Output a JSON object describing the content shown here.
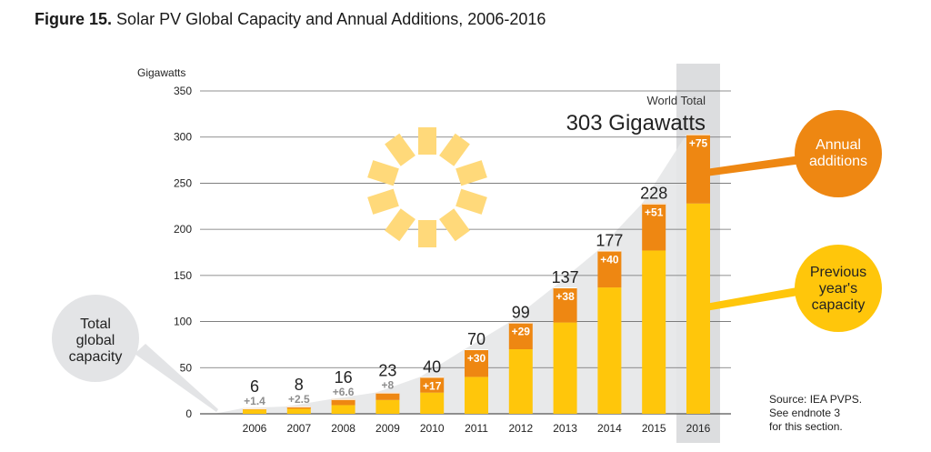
{
  "title": {
    "figure_label": "Figure 15.",
    "text": "Solar PV Global Capacity and Annual Additions, 2006-2016"
  },
  "colors": {
    "previous": "#FFC60B",
    "additions": "#EE8712",
    "area": "#E6E7E8",
    "highlight": "#DCDDDF",
    "sun": "#FFD97A",
    "bubble_gray": "#E3E4E6",
    "label_additions": "#8E8E8E"
  },
  "chart_data": {
    "type": "bar",
    "stacked": true,
    "ylabel": "Gigawatts",
    "ylim": [
      0,
      350
    ],
    "yticks": [
      0,
      50,
      100,
      150,
      200,
      250,
      300,
      350
    ],
    "grid": true,
    "categories": [
      "2006",
      "2007",
      "2008",
      "2009",
      "2010",
      "2011",
      "2012",
      "2013",
      "2014",
      "2015",
      "2016"
    ],
    "series": [
      {
        "name": "Previous year's capacity",
        "values": [
          4.6,
          5.5,
          9.4,
          15,
          23,
          40,
          70,
          99,
          137,
          177,
          228
        ]
      },
      {
        "name": "Annual additions",
        "values": [
          1.4,
          2.5,
          6.6,
          8,
          17,
          30,
          29,
          38,
          40,
          51,
          75
        ]
      }
    ],
    "totals": [
      "6",
      "8",
      "16",
      "23",
      "40",
      "70",
      "99",
      "137",
      "177",
      "228",
      ""
    ],
    "addition_labels": [
      "+1.4",
      "+2.5",
      "+6.6",
      "+8",
      "+17",
      "+30",
      "+29",
      "+38",
      "+40",
      "+51",
      "+75"
    ],
    "highlight_category": "2016",
    "world_total_label": "World Total",
    "world_total_value": "303 Gigawatts",
    "callouts": {
      "total": "Total\nglobal\ncapacity",
      "additions": "Annual\nadditions",
      "previous": "Previous\nyear's\ncapacity"
    }
  },
  "source_note": "Source: IEA PVPS.\nSee endnote 3\nfor this section."
}
